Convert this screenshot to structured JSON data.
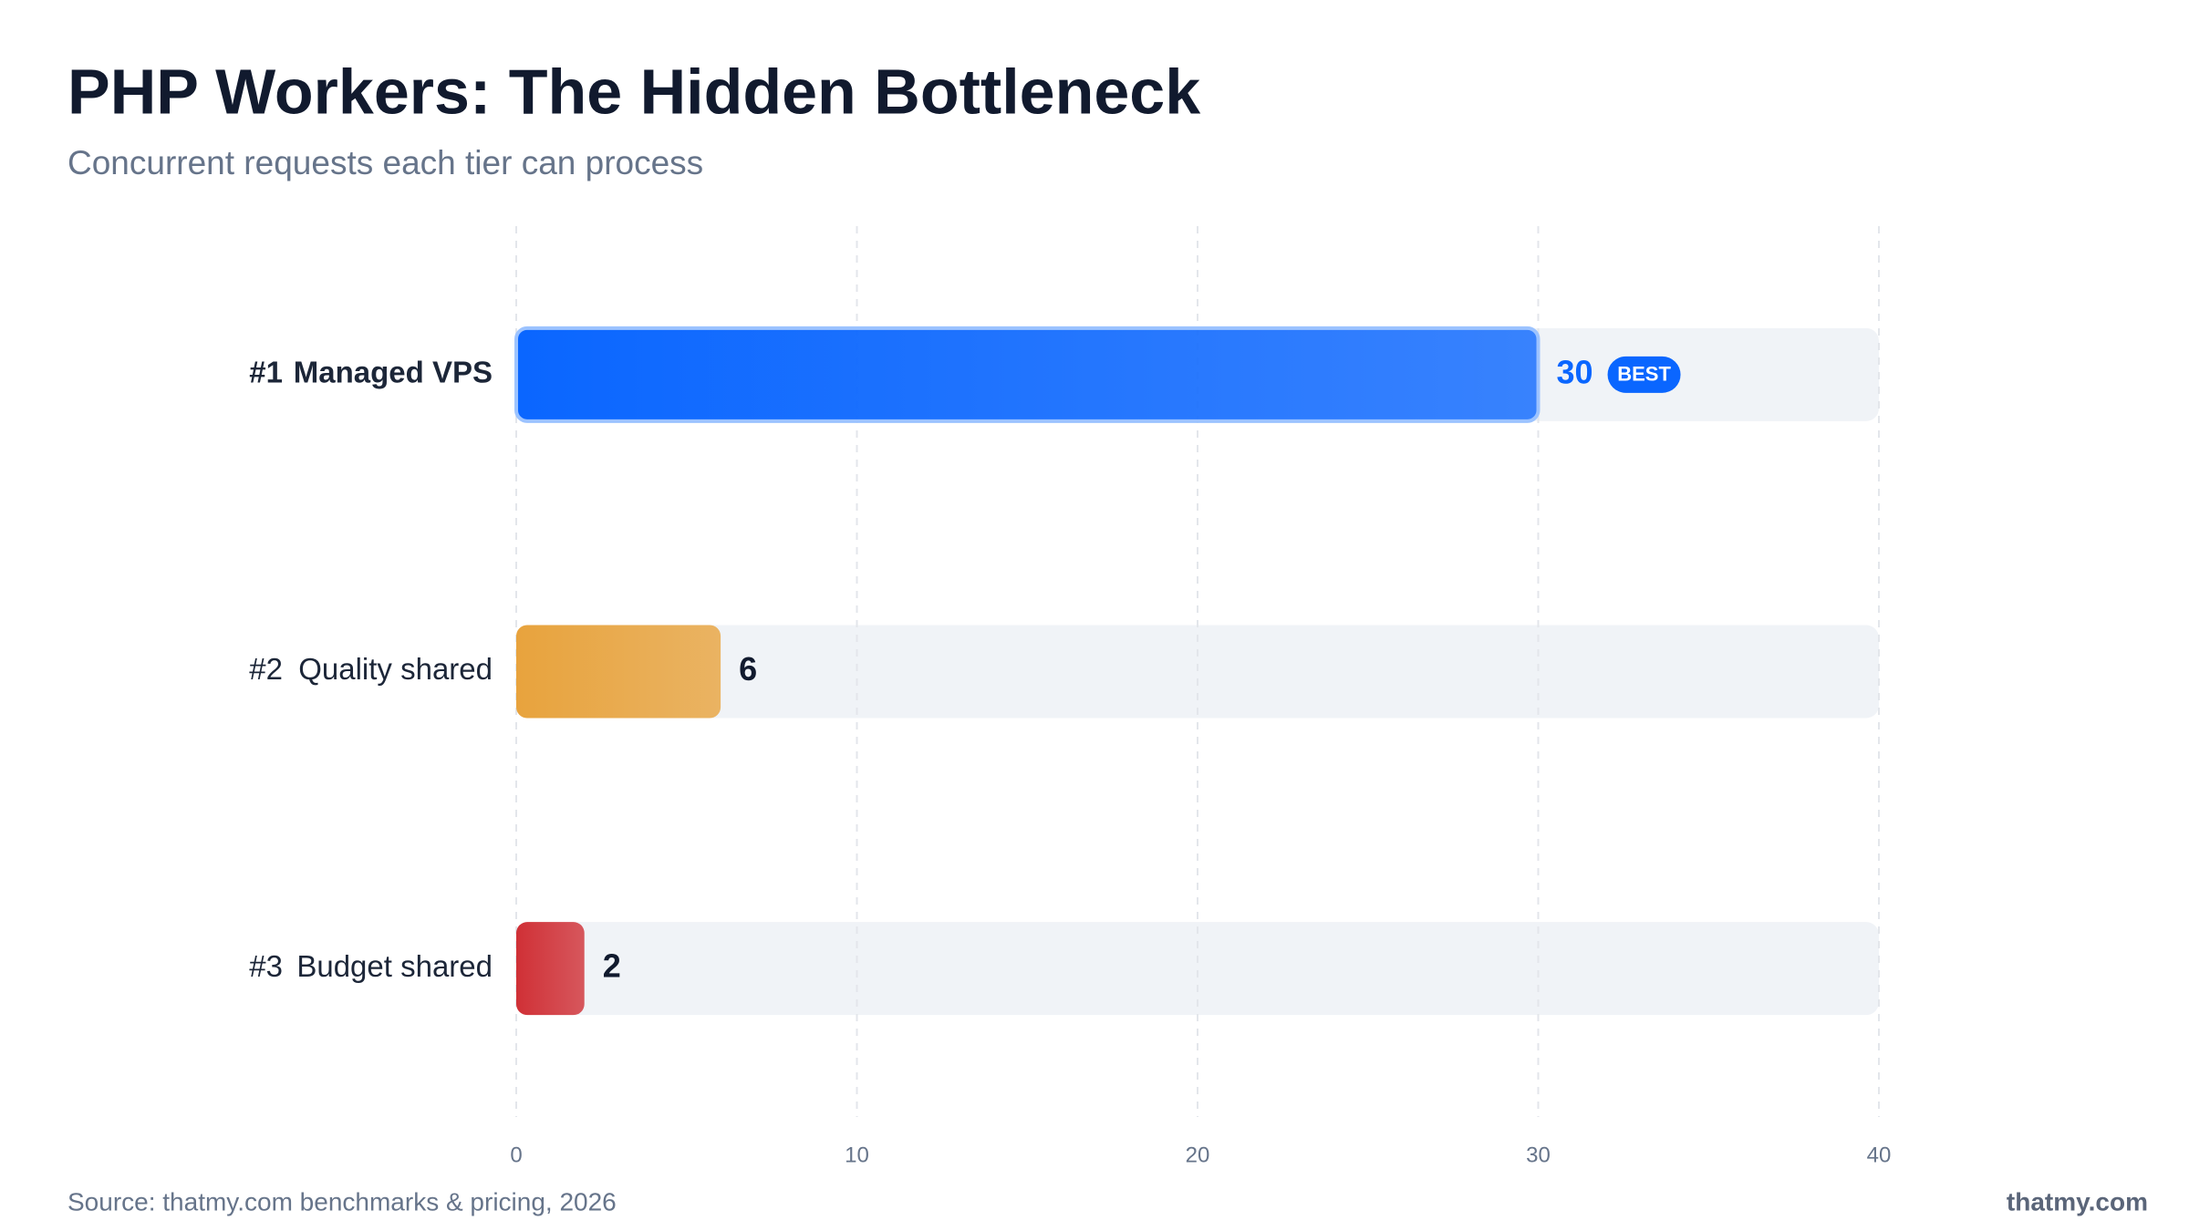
{
  "chart_data": {
    "type": "hbar",
    "title": "PHP Workers: The Hidden Bottleneck",
    "subtitle": "Concurrent requests each tier can process",
    "ranks": [
      "#1",
      "#2",
      "#3"
    ],
    "categories": [
      "Managed VPS",
      "Quality shared",
      "Budget shared"
    ],
    "values": [
      30,
      6,
      2
    ],
    "colors": [
      "#0a66ff",
      "#e8a33d",
      "#d03036"
    ],
    "badges": [
      "BEST",
      null,
      null
    ],
    "xlim": [
      0,
      40
    ],
    "xticks": [
      0,
      10,
      20,
      30,
      40
    ],
    "grid": true,
    "source": "Source: thatmy.com benchmarks & pricing, 2026",
    "brand": "thatmy.com"
  }
}
